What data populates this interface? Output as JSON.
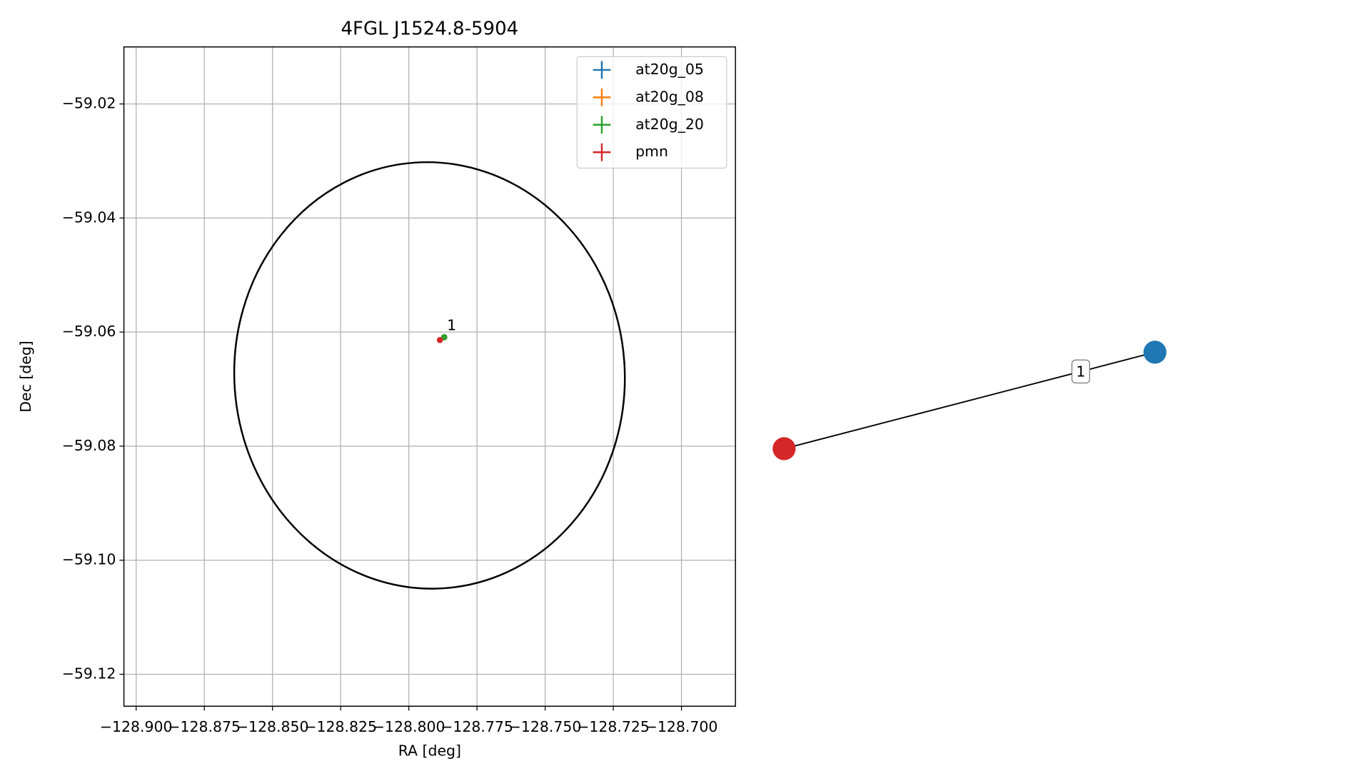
{
  "chart_data": {
    "type": "scatter",
    "title": "4FGL J1524.8-5904",
    "x_label": "RA [deg]",
    "y_label": "Dec [deg]",
    "xlim": [
      -128.9045,
      -128.6802
    ],
    "ylim": [
      -59.1256,
      -59.01
    ],
    "xticks": [
      {
        "value": -128.9,
        "label": "−128.900"
      },
      {
        "value": -128.875,
        "label": "−128.875"
      },
      {
        "value": -128.85,
        "label": "−128.850"
      },
      {
        "value": -128.825,
        "label": "−128.825"
      },
      {
        "value": -128.8,
        "label": "−128.800"
      },
      {
        "value": -128.775,
        "label": "−128.775"
      },
      {
        "value": -128.75,
        "label": "−128.750"
      },
      {
        "value": -128.725,
        "label": "−128.725"
      },
      {
        "value": -128.7,
        "label": "−128.700"
      }
    ],
    "yticks": [
      {
        "value": -59.02,
        "label": "−59.02"
      },
      {
        "value": -59.04,
        "label": "−59.04"
      },
      {
        "value": -59.06,
        "label": "−59.06"
      },
      {
        "value": -59.08,
        "label": "−59.08"
      },
      {
        "value": -59.1,
        "label": "−59.10"
      },
      {
        "value": -59.12,
        "label": "−59.12"
      }
    ],
    "grid": true,
    "legend": "upper right",
    "series": [
      {
        "name": "at20g_05",
        "color": "#1f77b4",
        "x": [
          -128.787
        ],
        "values": [
          -59.0609
        ]
      },
      {
        "name": "at20g_08",
        "color": "#ff7f0e",
        "x": [
          -128.787
        ],
        "values": [
          -59.0609
        ]
      },
      {
        "name": "at20g_20",
        "color": "#2ca02c",
        "x": [
          -128.787
        ],
        "values": [
          -59.0609
        ]
      },
      {
        "name": "pmn",
        "color": "#d62728",
        "x": [
          -128.7886
        ],
        "values": [
          -59.0614
        ]
      }
    ],
    "annotations": [
      {
        "text": "1",
        "x": -128.7843,
        "y": -59.0589
      }
    ],
    "region": {
      "ra": -128.7924,
      "dec": -59.0676,
      "ra_radius": 0.0716,
      "dec_radius": 0.0374
    }
  },
  "network": {
    "nodes": [
      {
        "color": "#d62728"
      },
      {
        "color": "#1f77b4"
      }
    ],
    "edges": [
      {
        "source": 0,
        "target": 1,
        "label": "1"
      }
    ]
  }
}
